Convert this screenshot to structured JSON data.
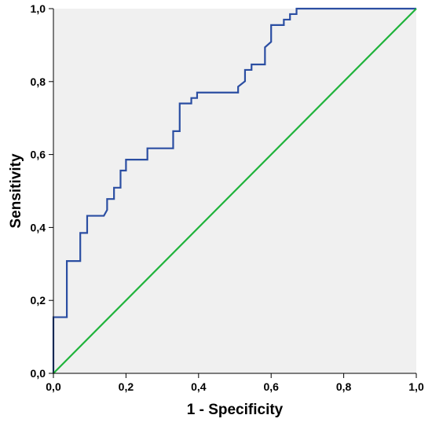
{
  "chart_data": {
    "type": "line",
    "title": "",
    "xlabel": "1 - Specificity",
    "ylabel": "Sensitivity",
    "xlim": [
      0,
      1
    ],
    "ylim": [
      0,
      1
    ],
    "grid": false,
    "x_ticks": [
      "0,0",
      "0,2",
      "0,4",
      "0,6",
      "0,8",
      "1,0"
    ],
    "y_ticks": [
      "0,0",
      "0,2",
      "0,4",
      "0,6",
      "0,8",
      "1,0"
    ],
    "background_color": "#f0f0f0",
    "series": [
      {
        "color": "#2b4ea2",
        "style": "step",
        "points": [
          [
            0.0,
            0.0
          ],
          [
            0.0,
            0.154
          ],
          [
            0.037,
            0.154
          ],
          [
            0.037,
            0.308
          ],
          [
            0.074,
            0.308
          ],
          [
            0.074,
            0.385
          ],
          [
            0.093,
            0.385
          ],
          [
            0.093,
            0.432
          ],
          [
            0.139,
            0.432
          ],
          [
            0.148,
            0.448
          ],
          [
            0.148,
            0.478
          ],
          [
            0.167,
            0.478
          ],
          [
            0.167,
            0.509
          ],
          [
            0.185,
            0.509
          ],
          [
            0.185,
            0.556
          ],
          [
            0.2,
            0.556
          ],
          [
            0.2,
            0.586
          ],
          [
            0.259,
            0.586
          ],
          [
            0.259,
            0.617
          ],
          [
            0.33,
            0.617
          ],
          [
            0.33,
            0.664
          ],
          [
            0.348,
            0.664
          ],
          [
            0.348,
            0.74
          ],
          [
            0.38,
            0.74
          ],
          [
            0.38,
            0.755
          ],
          [
            0.396,
            0.755
          ],
          [
            0.396,
            0.77
          ],
          [
            0.509,
            0.77
          ],
          [
            0.509,
            0.786
          ],
          [
            0.528,
            0.801
          ],
          [
            0.528,
            0.832
          ],
          [
            0.546,
            0.832
          ],
          [
            0.546,
            0.847
          ],
          [
            0.583,
            0.847
          ],
          [
            0.583,
            0.894
          ],
          [
            0.6,
            0.909
          ],
          [
            0.6,
            0.955
          ],
          [
            0.635,
            0.955
          ],
          [
            0.635,
            0.97
          ],
          [
            0.652,
            0.97
          ],
          [
            0.652,
            0.985
          ],
          [
            0.67,
            0.985
          ],
          [
            0.67,
            1.0
          ],
          [
            1.0,
            1.0
          ]
        ]
      },
      {
        "color": "#1fb33b",
        "style": "line",
        "points": [
          [
            0.0,
            0.0
          ],
          [
            1.0,
            1.0
          ]
        ]
      }
    ]
  }
}
